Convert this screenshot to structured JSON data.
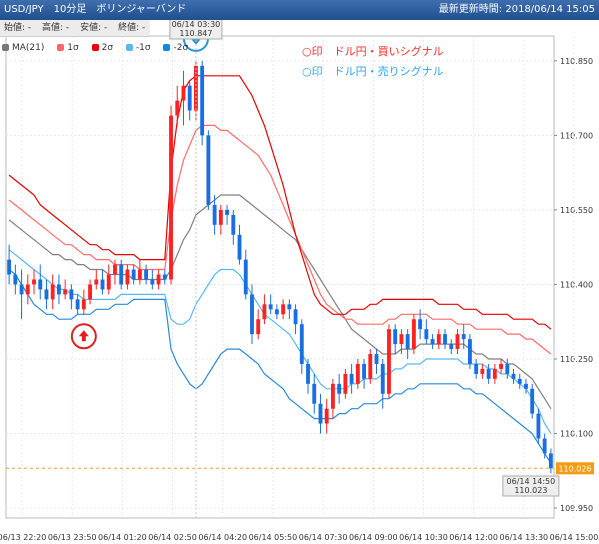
{
  "header": {
    "title_left": "USD/JPY　10分足　ボリンジャーバンド",
    "title_right": "最新更新時間: 2018/06/14 15:05"
  },
  "ohlc": {
    "open_label": "始値: -",
    "high_label": "高値: -",
    "low_label": "安値: -",
    "close_label": "終値: -"
  },
  "legend": [
    {
      "label": "MA(21)",
      "color": "#777777"
    },
    {
      "label": "1σ",
      "color": "#ff6666"
    },
    {
      "label": "2σ",
      "color": "#ee0000"
    },
    {
      "label": "-1σ",
      "color": "#55bbee"
    },
    {
      "label": "-2σ",
      "color": "#1188dd"
    }
  ],
  "note": {
    "buy": "○印　ドル円・買いシグナル",
    "sell": "○印　ドル円・売りシグナル"
  },
  "tooltips": {
    "top": {
      "date": "06/14 03:30",
      "value": "110.847"
    },
    "bottom": {
      "date": "06/14 14:50",
      "value": "110.023"
    }
  },
  "current_price": "110.026",
  "colors": {
    "up": "#ff2222",
    "down": "#1a6fe0",
    "ma": "#808080",
    "band1": "#ff6b6b",
    "band2": "#e30000",
    "bandm1": "#5bb8ee",
    "bandm2": "#2a8ad6",
    "buy_signal": "#e02020",
    "sell_signal": "#2a95d9"
  },
  "chart_data": {
    "type": "candlestick",
    "title": "USD/JPY　10分足　ボリンジャーバンド",
    "ylim": [
      109.93,
      110.9
    ],
    "y_ticks": [
      "110.850",
      "110.700",
      "110.550",
      "110.400",
      "110.250",
      "110.100",
      "109.950"
    ],
    "x_ticks": [
      "06/13 22:20",
      "06/13 23:50",
      "06/14 01:20",
      "06/14 02:50",
      "06/14 04:20",
      "06/14 05:50",
      "06/14 07:30",
      "06/14 09:00",
      "06/14 10:30",
      "06/14 12:00",
      "06/14 13:30",
      "06/14 15:00"
    ],
    "candles": [
      [
        110.45,
        110.42,
        110.48,
        110.4
      ],
      [
        110.42,
        110.4,
        110.44,
        110.38
      ],
      [
        110.4,
        110.38,
        110.43,
        110.33
      ],
      [
        110.38,
        110.4,
        110.42,
        110.36
      ],
      [
        110.4,
        110.41,
        110.43,
        110.38
      ],
      [
        110.41,
        110.39,
        110.44,
        110.37
      ],
      [
        110.39,
        110.37,
        110.41,
        110.35
      ],
      [
        110.37,
        110.4,
        110.42,
        110.35
      ],
      [
        110.4,
        110.38,
        110.42,
        110.36
      ],
      [
        110.38,
        110.39,
        110.41,
        110.37
      ],
      [
        110.39,
        110.37,
        110.4,
        110.35
      ],
      [
        110.37,
        110.35,
        110.38,
        110.34
      ],
      [
        110.35,
        110.37,
        110.39,
        110.34
      ],
      [
        110.37,
        110.4,
        110.41,
        110.36
      ],
      [
        110.4,
        110.41,
        110.43,
        110.39
      ],
      [
        110.41,
        110.39,
        110.43,
        110.38
      ],
      [
        110.39,
        110.42,
        110.44,
        110.38
      ],
      [
        110.42,
        110.44,
        110.45,
        110.4
      ],
      [
        110.44,
        110.4,
        110.45,
        110.39
      ],
      [
        110.4,
        110.43,
        110.44,
        110.39
      ],
      [
        110.43,
        110.41,
        110.44,
        110.4
      ],
      [
        110.41,
        110.43,
        110.45,
        110.4
      ],
      [
        110.43,
        110.41,
        110.44,
        110.4
      ],
      [
        110.41,
        110.4,
        110.43,
        110.39
      ],
      [
        110.4,
        110.42,
        110.43,
        110.39
      ],
      [
        110.42,
        110.41,
        110.43,
        110.4
      ],
      [
        110.41,
        110.74,
        110.76,
        110.4
      ],
      [
        110.74,
        110.77,
        110.8,
        110.72
      ],
      [
        110.77,
        110.8,
        110.83,
        110.72
      ],
      [
        110.8,
        110.75,
        110.81,
        110.73
      ],
      [
        110.75,
        110.84,
        110.85,
        110.73
      ],
      [
        110.84,
        110.7,
        110.85,
        110.68
      ],
      [
        110.7,
        110.56,
        110.71,
        110.55
      ],
      [
        110.56,
        110.52,
        110.58,
        110.5
      ],
      [
        110.52,
        110.55,
        110.56,
        110.5
      ],
      [
        110.55,
        110.54,
        110.56,
        110.52
      ],
      [
        110.54,
        110.5,
        110.55,
        110.48
      ],
      [
        110.5,
        110.45,
        110.52,
        110.44
      ],
      [
        110.45,
        110.38,
        110.47,
        110.37
      ],
      [
        110.38,
        110.3,
        110.4,
        110.28
      ],
      [
        110.3,
        110.33,
        110.35,
        110.29
      ],
      [
        110.33,
        110.36,
        110.38,
        110.32
      ],
      [
        110.36,
        110.35,
        110.38,
        110.34
      ],
      [
        110.35,
        110.34,
        110.36,
        110.33
      ],
      [
        110.34,
        110.36,
        110.37,
        110.33
      ],
      [
        110.36,
        110.35,
        110.37,
        110.33
      ],
      [
        110.35,
        110.32,
        110.36,
        110.3
      ],
      [
        110.32,
        110.24,
        110.33,
        110.22
      ],
      [
        110.24,
        110.2,
        110.25,
        110.18
      ],
      [
        110.2,
        110.16,
        110.22,
        110.14
      ],
      [
        110.16,
        110.12,
        110.18,
        110.1
      ],
      [
        110.12,
        110.15,
        110.17,
        110.1
      ],
      [
        110.15,
        110.2,
        110.21,
        110.13
      ],
      [
        110.2,
        110.18,
        110.22,
        110.16
      ],
      [
        110.18,
        110.22,
        110.23,
        110.17
      ],
      [
        110.22,
        110.2,
        110.24,
        110.18
      ],
      [
        110.2,
        110.24,
        110.25,
        110.19
      ],
      [
        110.24,
        110.21,
        110.25,
        110.19
      ],
      [
        110.21,
        110.26,
        110.27,
        110.2
      ],
      [
        110.26,
        110.24,
        110.27,
        110.22
      ],
      [
        110.24,
        110.18,
        110.25,
        110.15
      ],
      [
        110.18,
        110.31,
        110.32,
        110.17
      ],
      [
        110.31,
        110.28,
        110.32,
        110.26
      ],
      [
        110.28,
        110.3,
        110.31,
        110.26
      ],
      [
        110.3,
        110.27,
        110.31,
        110.25
      ],
      [
        110.27,
        110.33,
        110.34,
        110.26
      ],
      [
        110.33,
        110.31,
        110.35,
        110.29
      ],
      [
        110.31,
        110.29,
        110.33,
        110.28
      ],
      [
        110.29,
        110.28,
        110.3,
        110.27
      ],
      [
        110.28,
        110.3,
        110.31,
        110.27
      ],
      [
        110.3,
        110.28,
        110.31,
        110.27
      ],
      [
        110.28,
        110.27,
        110.29,
        110.26
      ],
      [
        110.27,
        110.3,
        110.31,
        110.26
      ],
      [
        110.3,
        110.29,
        110.32,
        110.27
      ],
      [
        110.29,
        110.24,
        110.3,
        110.23
      ],
      [
        110.24,
        110.22,
        110.25,
        110.21
      ],
      [
        110.22,
        110.23,
        110.24,
        110.21
      ],
      [
        110.23,
        110.21,
        110.24,
        110.2
      ],
      [
        110.21,
        110.23,
        110.24,
        110.2
      ],
      [
        110.23,
        110.24,
        110.25,
        110.22
      ],
      [
        110.24,
        110.22,
        110.25,
        110.21
      ],
      [
        110.22,
        110.21,
        110.23,
        110.2
      ],
      [
        110.21,
        110.2,
        110.22,
        110.19
      ],
      [
        110.2,
        110.19,
        110.21,
        110.18
      ],
      [
        110.19,
        110.14,
        110.2,
        110.13
      ],
      [
        110.14,
        110.09,
        110.15,
        110.08
      ],
      [
        110.09,
        110.06,
        110.1,
        110.05
      ],
      [
        110.06,
        110.03,
        110.07,
        110.02
      ]
    ],
    "bands": {
      "ma21": [
        110.53,
        110.52,
        110.51,
        110.5,
        110.49,
        110.48,
        110.47,
        110.46,
        110.46,
        110.45,
        110.45,
        110.44,
        110.44,
        110.43,
        110.43,
        110.43,
        110.42,
        110.42,
        110.42,
        110.42,
        110.41,
        110.41,
        110.41,
        110.41,
        110.41,
        110.41,
        110.43,
        110.46,
        110.49,
        110.51,
        110.54,
        110.55,
        110.56,
        110.57,
        110.58,
        110.58,
        110.58,
        110.58,
        110.57,
        110.56,
        110.55,
        110.54,
        110.53,
        110.52,
        110.51,
        110.5,
        110.49,
        110.47,
        110.45,
        110.43,
        110.41,
        110.39,
        110.37,
        110.35,
        110.33,
        110.31,
        110.3,
        110.29,
        110.28,
        110.27,
        110.26,
        110.26,
        110.26,
        110.27,
        110.27,
        110.27,
        110.28,
        110.28,
        110.28,
        110.28,
        110.28,
        110.28,
        110.28,
        110.28,
        110.27,
        110.26,
        110.26,
        110.25,
        110.25,
        110.25,
        110.24,
        110.24,
        110.23,
        110.22,
        110.21,
        110.19,
        110.17,
        110.15
      ],
      "p1": [
        110.57,
        110.56,
        110.55,
        110.54,
        110.53,
        110.52,
        110.51,
        110.5,
        110.49,
        110.48,
        110.48,
        110.47,
        110.46,
        110.46,
        110.45,
        110.45,
        110.45,
        110.44,
        110.44,
        110.44,
        110.44,
        110.43,
        110.43,
        110.43,
        110.43,
        110.43,
        110.53,
        110.6,
        110.65,
        110.68,
        110.71,
        110.72,
        110.72,
        110.72,
        110.71,
        110.71,
        110.7,
        110.69,
        110.68,
        110.67,
        110.66,
        110.64,
        110.62,
        110.59,
        110.56,
        110.53,
        110.5,
        110.47,
        110.44,
        110.41,
        110.38,
        110.36,
        110.35,
        110.34,
        110.33,
        110.33,
        110.32,
        110.32,
        110.32,
        110.32,
        110.32,
        110.33,
        110.33,
        110.34,
        110.34,
        110.34,
        110.34,
        110.34,
        110.33,
        110.33,
        110.33,
        110.33,
        110.32,
        110.32,
        110.32,
        110.31,
        110.31,
        110.31,
        110.31,
        110.31,
        110.3,
        110.3,
        110.3,
        110.29,
        110.29,
        110.28,
        110.27,
        110.26
      ],
      "p2": [
        110.62,
        110.61,
        110.6,
        110.59,
        110.58,
        110.56,
        110.55,
        110.54,
        110.53,
        110.52,
        110.51,
        110.5,
        110.49,
        110.48,
        110.48,
        110.47,
        110.47,
        110.46,
        110.46,
        110.46,
        110.46,
        110.45,
        110.45,
        110.45,
        110.45,
        110.45,
        110.63,
        110.73,
        110.79,
        110.81,
        110.82,
        110.82,
        110.82,
        110.82,
        110.82,
        110.82,
        110.82,
        110.82,
        110.8,
        110.78,
        110.75,
        110.72,
        110.68,
        110.64,
        110.6,
        110.55,
        110.5,
        110.46,
        110.42,
        110.38,
        110.36,
        110.35,
        110.34,
        110.34,
        110.34,
        110.35,
        110.35,
        110.35,
        110.36,
        110.36,
        110.37,
        110.37,
        110.37,
        110.37,
        110.37,
        110.37,
        110.37,
        110.37,
        110.37,
        110.36,
        110.36,
        110.36,
        110.36,
        110.35,
        110.35,
        110.35,
        110.34,
        110.34,
        110.34,
        110.34,
        110.34,
        110.33,
        110.33,
        110.33,
        110.33,
        110.32,
        110.32,
        110.31
      ],
      "m1": [
        110.47,
        110.46,
        110.45,
        110.44,
        110.43,
        110.42,
        110.41,
        110.4,
        110.39,
        110.39,
        110.38,
        110.38,
        110.37,
        110.37,
        110.37,
        110.37,
        110.37,
        110.37,
        110.38,
        110.38,
        110.38,
        110.38,
        110.38,
        110.38,
        110.38,
        110.38,
        110.33,
        110.32,
        110.32,
        110.33,
        110.36,
        110.38,
        110.4,
        110.42,
        110.43,
        110.43,
        110.43,
        110.42,
        110.4,
        110.38,
        110.36,
        110.34,
        110.33,
        110.32,
        110.31,
        110.3,
        110.28,
        110.26,
        110.24,
        110.22,
        110.2,
        110.19,
        110.19,
        110.19,
        110.19,
        110.2,
        110.2,
        110.21,
        110.21,
        110.21,
        110.22,
        110.22,
        110.23,
        110.23,
        110.24,
        110.24,
        110.24,
        110.25,
        110.25,
        110.25,
        110.25,
        110.25,
        110.25,
        110.24,
        110.24,
        110.24,
        110.24,
        110.23,
        110.23,
        110.22,
        110.22,
        110.21,
        110.2,
        110.19,
        110.17,
        110.15,
        110.12,
        110.1
      ],
      "m2": [
        110.43,
        110.42,
        110.4,
        110.38,
        110.36,
        110.35,
        110.34,
        110.34,
        110.33,
        110.33,
        110.33,
        110.34,
        110.34,
        110.34,
        110.35,
        110.35,
        110.35,
        110.36,
        110.36,
        110.36,
        110.37,
        110.37,
        110.37,
        110.37,
        110.37,
        110.37,
        110.27,
        110.24,
        110.22,
        110.2,
        110.19,
        110.2,
        110.22,
        110.24,
        110.26,
        110.27,
        110.27,
        110.27,
        110.26,
        110.25,
        110.24,
        110.22,
        110.21,
        110.2,
        110.19,
        110.17,
        110.16,
        110.15,
        110.14,
        110.13,
        110.13,
        110.13,
        110.13,
        110.14,
        110.14,
        110.15,
        110.15,
        110.16,
        110.16,
        110.16,
        110.17,
        110.17,
        110.18,
        110.18,
        110.19,
        110.19,
        110.2,
        110.2,
        110.2,
        110.2,
        110.2,
        110.2,
        110.2,
        110.19,
        110.19,
        110.18,
        110.18,
        110.17,
        110.16,
        110.15,
        110.14,
        110.13,
        110.12,
        110.11,
        110.1,
        110.08,
        110.06,
        110.04
      ]
    },
    "signals": [
      {
        "type": "buy",
        "index": 12
      },
      {
        "type": "sell",
        "index": 30
      }
    ]
  }
}
